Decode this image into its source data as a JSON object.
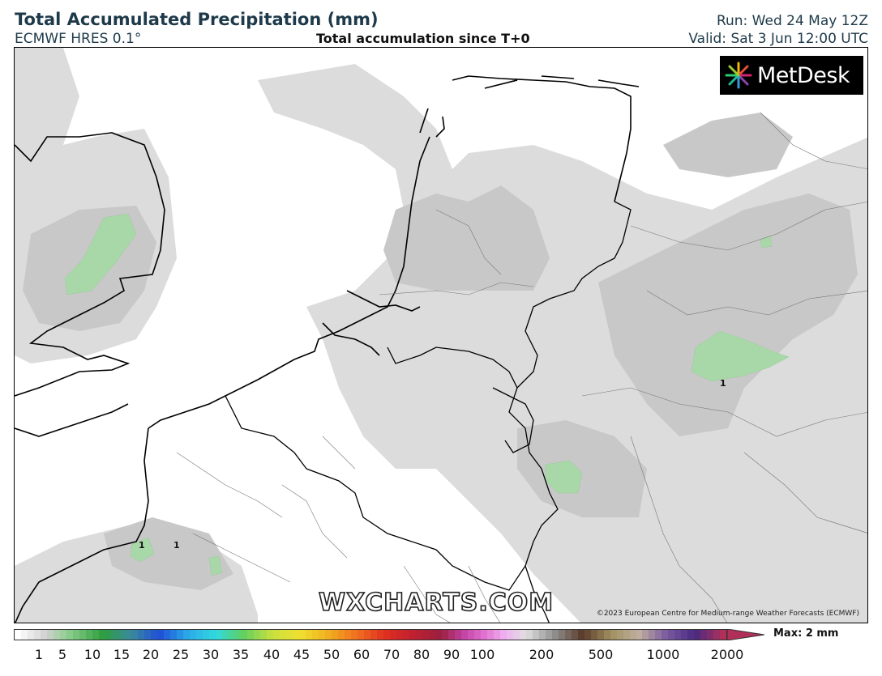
{
  "header": {
    "title": "Total Accumulated Precipitation (mm)",
    "model": "ECMWF HRES 0.1°",
    "subtitle": "Total accumulation since T+0",
    "run": "Run: Wed 24 May 12Z",
    "valid": "Valid: Sat 3 Jun 12:00 UTC"
  },
  "logo": {
    "text": "MetDesk",
    "icon": "metdesk-burst-icon"
  },
  "watermark": "WXCHARTS.COM",
  "copyright": "©2023 European Centre for Medium-range Weather Forecasts (ECMWF)",
  "map_labels": [
    {
      "id": "label-1-germany",
      "text": "1"
    },
    {
      "id": "label-1-france-west",
      "text": "1"
    },
    {
      "id": "label-1-france-east",
      "text": "1"
    }
  ],
  "colorbar": {
    "max_label": "Max: 2 mm",
    "ticks": [
      "1",
      "5",
      "10",
      "15",
      "20",
      "25",
      "30",
      "35",
      "40",
      "45",
      "50",
      "60",
      "70",
      "80",
      "90",
      "100",
      "200",
      "500",
      "1000",
      "2000"
    ]
  },
  "colors": {
    "rain_light": "#dcdcdc",
    "rain_medium": "#c9c9c9",
    "rain_1mm": "#a8d8a8",
    "border": "#000000"
  }
}
